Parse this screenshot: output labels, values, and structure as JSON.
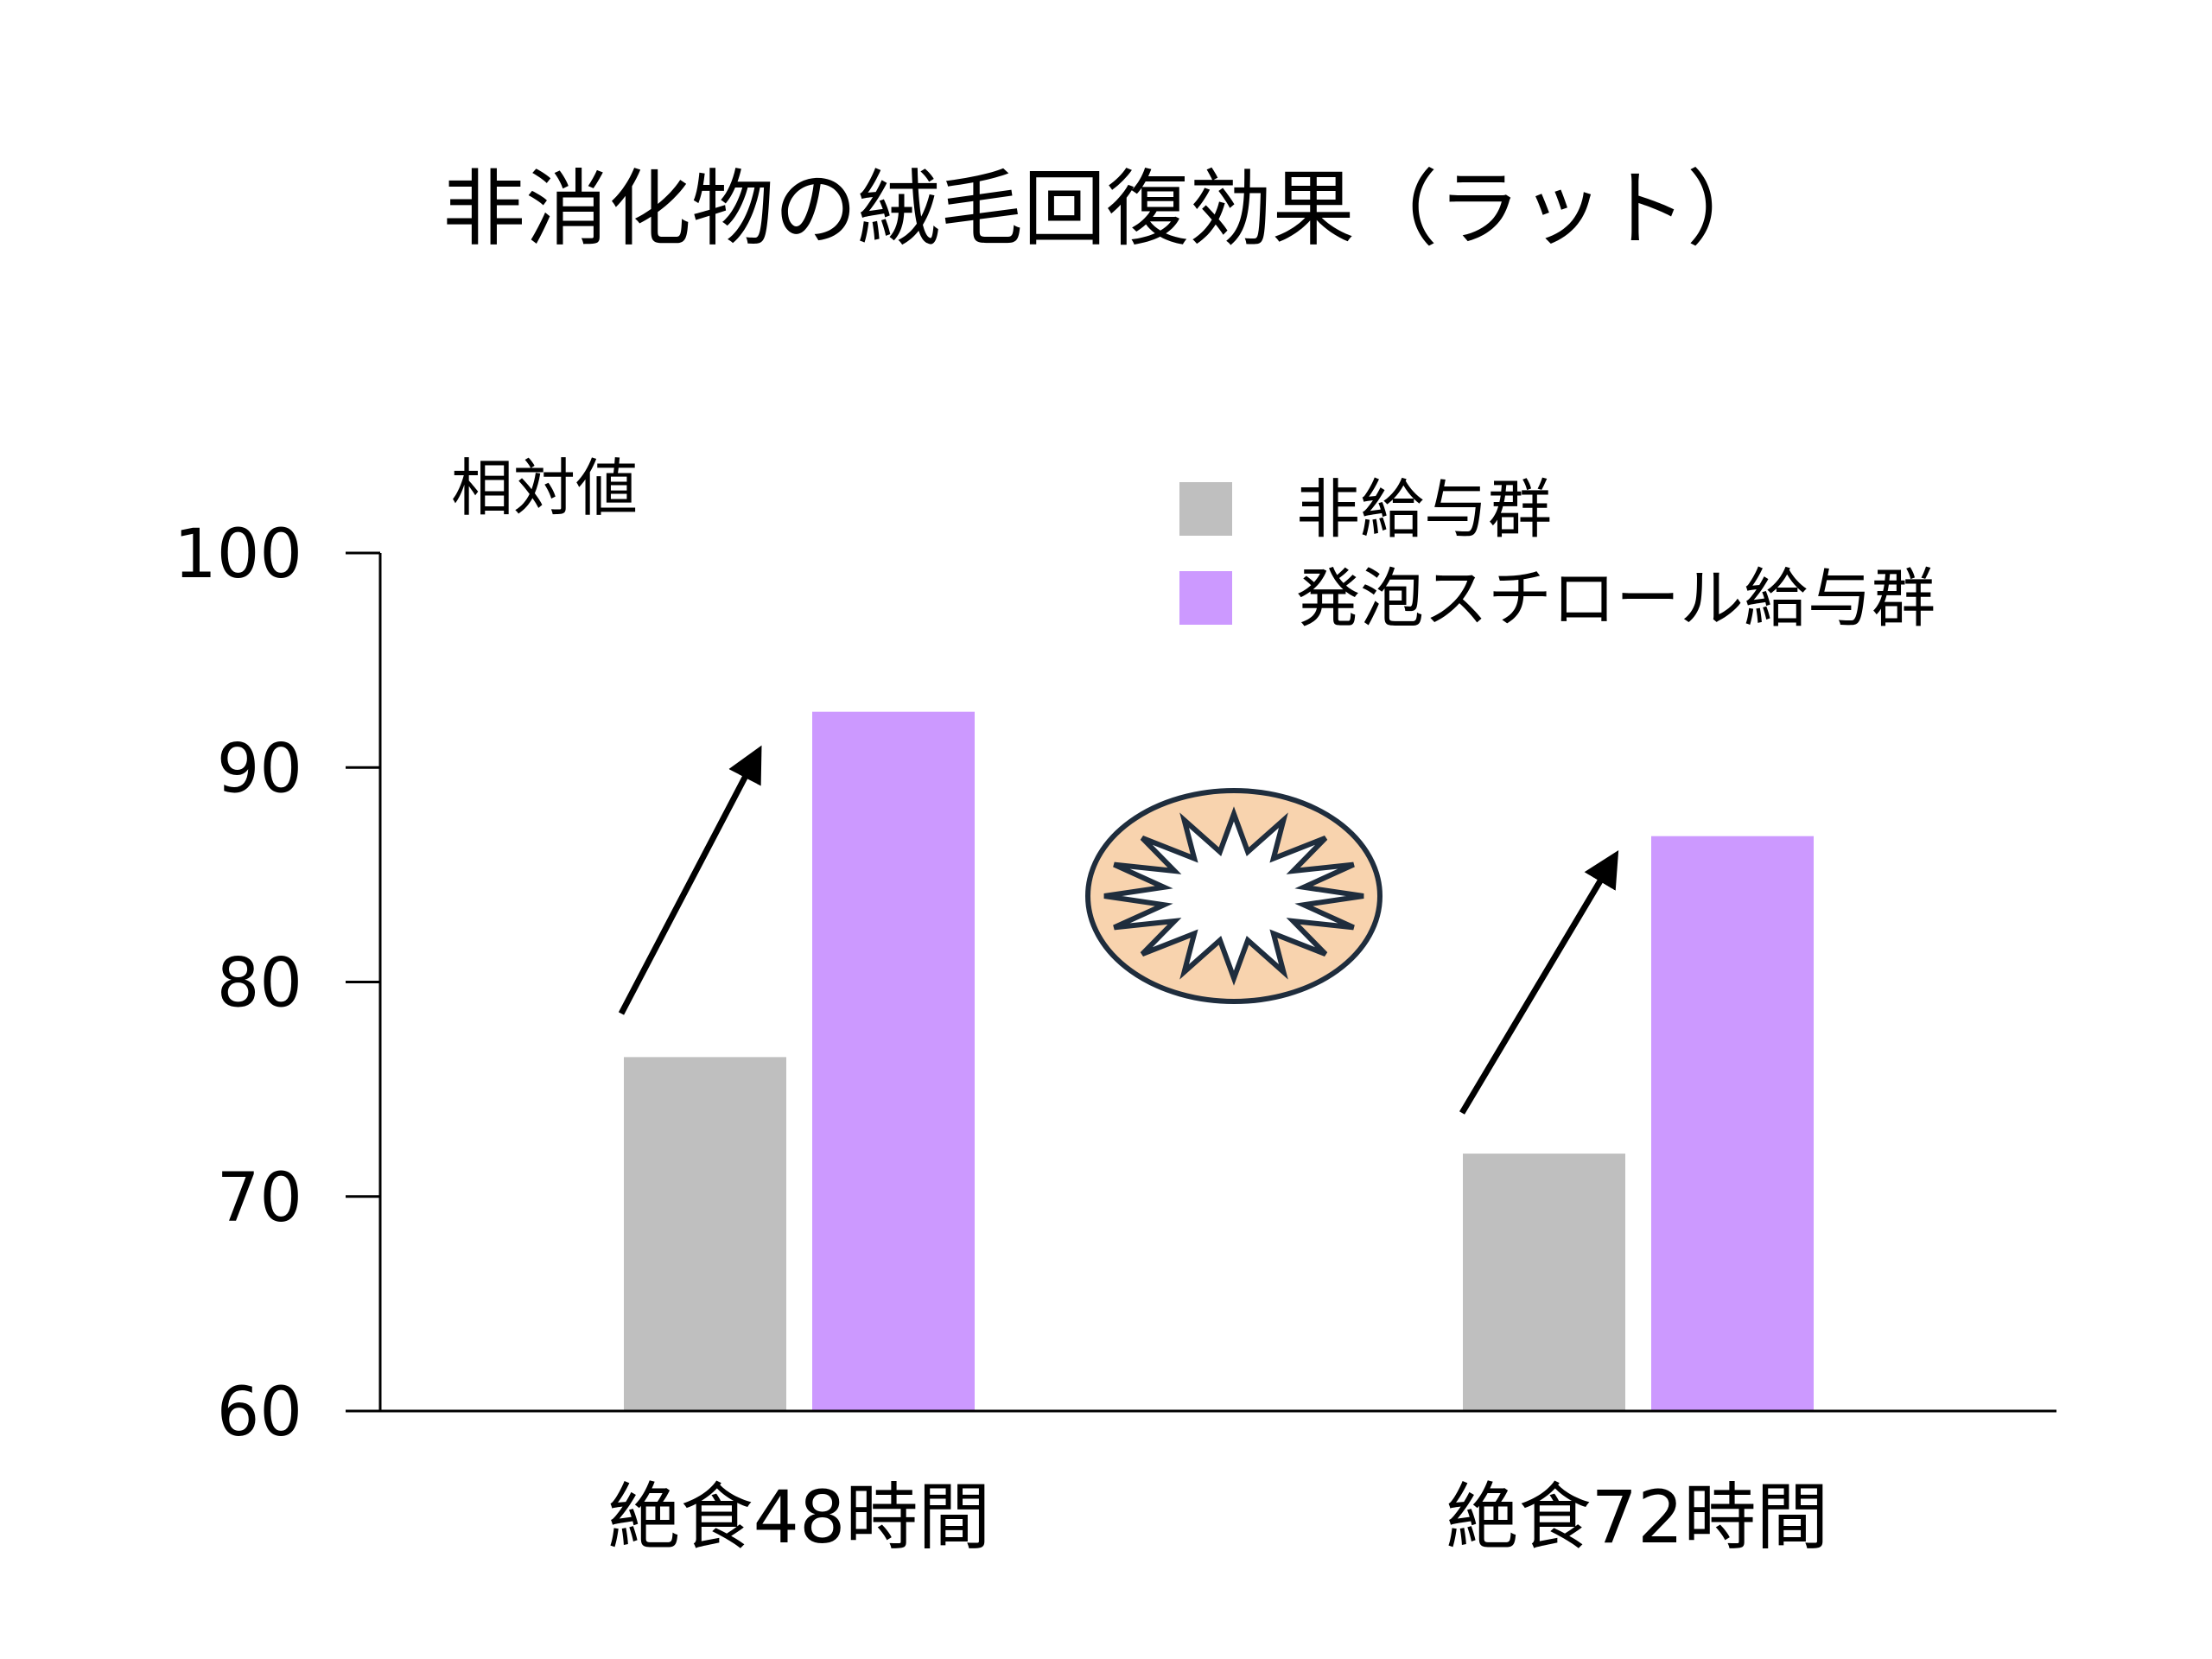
{
  "chart_data": {
    "type": "bar",
    "title": "非消化物の絨毛回復効果（ラット）",
    "ylabel": "相対値",
    "xlabel": "",
    "ylim": [
      60,
      100
    ],
    "yticks": [
      "100",
      "90",
      "80",
      "70",
      "60"
    ],
    "categories": [
      "絶食48時間",
      "絶食72時間"
    ],
    "series": [
      {
        "name": "非給与群",
        "color": "#bfbfbf",
        "values": [
          76.5,
          72.0
        ]
      },
      {
        "name": "発泡スチロール給与群",
        "color": "#cc99ff",
        "values": [
          92.6,
          86.8
        ]
      }
    ],
    "legend_position": "top-right",
    "annotations": [
      "arrow-up-48h",
      "arrow-up-72h",
      "burst-ellipse-icon"
    ],
    "grid": false
  }
}
